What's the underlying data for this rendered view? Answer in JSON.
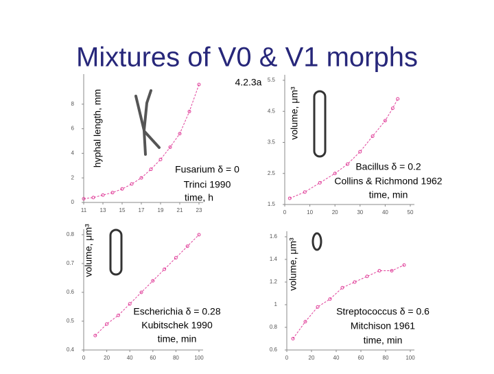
{
  "title": "Mixtures of V0 & V1 morphs",
  "label": "4.2.3a",
  "chart_data": [
    {
      "type": "scatter",
      "y_label": "hyphal length, mm",
      "annotations": [
        "Fusarium δ = 0",
        "Trinci 1990",
        "time, h"
      ],
      "x": [
        11,
        12,
        13,
        14,
        15,
        16,
        17,
        18,
        19,
        20,
        21,
        22,
        23
      ],
      "series": [
        {
          "color": "#e0409a",
          "values": [
            0.3,
            0.4,
            0.6,
            0.8,
            1.1,
            1.5,
            2,
            2.7,
            3.5,
            4.5,
            5.6,
            7.4,
            9.6
          ]
        }
      ],
      "xlim": [
        11,
        23
      ],
      "xticks": [
        11,
        13,
        15,
        17,
        19,
        21,
        23
      ],
      "ylim": [
        0,
        10
      ],
      "yticks": [
        0,
        2,
        4,
        6,
        8
      ]
    },
    {
      "type": "scatter",
      "y_label": "volume, μm³",
      "annotations": [
        "Bacillus δ = 0.2",
        "Collins & Richmond 1962",
        "time, min"
      ],
      "x": [
        2,
        8,
        14,
        20,
        25,
        30,
        35,
        40,
        43,
        45
      ],
      "series": [
        {
          "color": "#e0409a",
          "values": [
            1.7,
            1.9,
            2.2,
            2.5,
            2.8,
            3.2,
            3.7,
            4.2,
            4.6,
            4.9
          ]
        }
      ],
      "xlim": [
        0,
        50
      ],
      "xticks": [
        0,
        10,
        20,
        30,
        40,
        50
      ],
      "ylim": [
        1.5,
        5.5
      ],
      "yticks": [
        1.5,
        2.5,
        3.5,
        4.5,
        5.5
      ]
    },
    {
      "type": "scatter",
      "y_label": "volume, μm³",
      "annotations": [
        "Escherichia δ = 0.28",
        "Kubitschek 1990",
        "time, min"
      ],
      "x": [
        10,
        20,
        30,
        40,
        50,
        60,
        70,
        80,
        90,
        100
      ],
      "series": [
        {
          "color": "#e0409a",
          "values": [
            0.45,
            0.49,
            0.52,
            0.56,
            0.6,
            0.64,
            0.68,
            0.72,
            0.76,
            0.8
          ]
        }
      ],
      "xlim": [
        0,
        100
      ],
      "xticks": [
        0,
        20,
        40,
        60,
        80,
        100
      ],
      "ylim": [
        0.4,
        0.8
      ],
      "yticks": [
        0.4,
        0.5,
        0.6,
        0.7,
        0.8
      ]
    },
    {
      "type": "scatter",
      "y_label": "volume, μm³",
      "annotations": [
        "Streptococcus δ = 0.6",
        "Mitchison 1961",
        "time, min"
      ],
      "x": [
        5,
        15,
        25,
        35,
        45,
        55,
        65,
        75,
        85,
        95
      ],
      "series": [
        {
          "color": "#e0409a",
          "values": [
            0.7,
            0.85,
            0.98,
            1.05,
            1.15,
            1.2,
            1.25,
            1.3,
            1.3,
            1.35
          ]
        }
      ],
      "xlim": [
        0,
        100
      ],
      "xticks": [
        0,
        20,
        40,
        60,
        80,
        100
      ],
      "ylim": [
        0.6,
        1.6
      ],
      "yticks": [
        0.6,
        0.8,
        1,
        1.2,
        1.4,
        1.6
      ]
    }
  ]
}
